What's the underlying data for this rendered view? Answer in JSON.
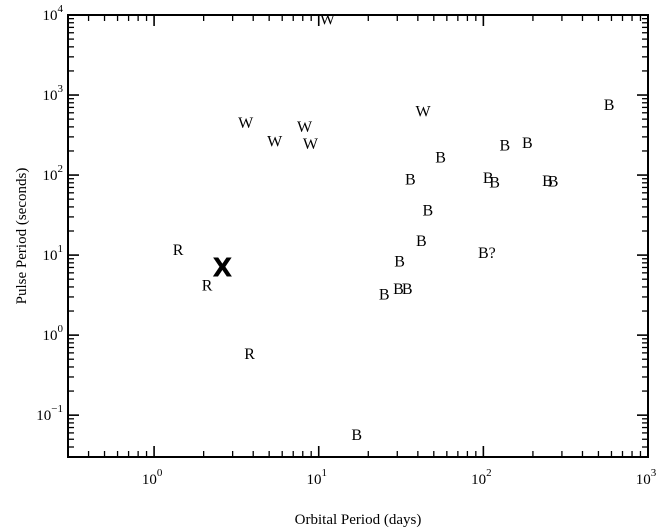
{
  "chart_data": {
    "type": "scatter",
    "title": "",
    "xlabel": "Orbital Period (days)",
    "ylabel": "Pulse Period (seconds)",
    "xscale": "log",
    "yscale": "log",
    "xlim": [
      0.3,
      1000
    ],
    "ylim": [
      0.03,
      10000
    ],
    "grid": false,
    "x_ticks": [
      {
        "value": 1,
        "base": "10",
        "exp": "0"
      },
      {
        "value": 10,
        "base": "10",
        "exp": "1"
      },
      {
        "value": 100,
        "base": "10",
        "exp": "2"
      },
      {
        "value": 1000,
        "base": "10",
        "exp": "3"
      }
    ],
    "y_ticks": [
      {
        "value": 0.1,
        "base": "10",
        "exp": "−1"
      },
      {
        "value": 1,
        "base": "10",
        "exp": "0"
      },
      {
        "value": 10,
        "base": "10",
        "exp": "1"
      },
      {
        "value": 100,
        "base": "10",
        "exp": "2"
      },
      {
        "value": 1000,
        "base": "10",
        "exp": "3"
      },
      {
        "value": 10000,
        "base": "10",
        "exp": "4"
      }
    ],
    "points": [
      {
        "label": "W",
        "x": 11.3,
        "y": 9000
      },
      {
        "label": "W",
        "x": 3.6,
        "y": 460
      },
      {
        "label": "W",
        "x": 5.4,
        "y": 270
      },
      {
        "label": "W",
        "x": 8.2,
        "y": 410
      },
      {
        "label": "W",
        "x": 8.9,
        "y": 250
      },
      {
        "label": "W",
        "x": 43,
        "y": 640
      },
      {
        "label": "R",
        "x": 1.4,
        "y": 12
      },
      {
        "label": "R",
        "x": 2.1,
        "y": 4.3
      },
      {
        "label": "R",
        "x": 3.8,
        "y": 0.6
      },
      {
        "label": "B",
        "x": 580,
        "y": 770
      },
      {
        "label": "B",
        "x": 135,
        "y": 240
      },
      {
        "label": "B",
        "x": 185,
        "y": 260
      },
      {
        "label": "B",
        "x": 55,
        "y": 170
      },
      {
        "label": "B",
        "x": 36,
        "y": 90
      },
      {
        "label": "B",
        "x": 107,
        "y": 95
      },
      {
        "label": "B",
        "x": 117,
        "y": 83
      },
      {
        "label": "B",
        "x": 245,
        "y": 87
      },
      {
        "label": "B",
        "x": 265,
        "y": 85
      },
      {
        "label": "B",
        "x": 46,
        "y": 37
      },
      {
        "label": "B",
        "x": 42,
        "y": 15.5
      },
      {
        "label": "B",
        "x": 31,
        "y": 8.5
      },
      {
        "label": "B",
        "x": 30.5,
        "y": 3.9
      },
      {
        "label": "B",
        "x": 34.5,
        "y": 3.9
      },
      {
        "label": "B",
        "x": 25,
        "y": 3.3
      },
      {
        "label": "B",
        "x": 17,
        "y": 0.058
      },
      {
        "label": "B?",
        "x": 105,
        "y": 11
      }
    ],
    "highlight": {
      "label": "X",
      "x": 2.6,
      "y": 7
    }
  }
}
